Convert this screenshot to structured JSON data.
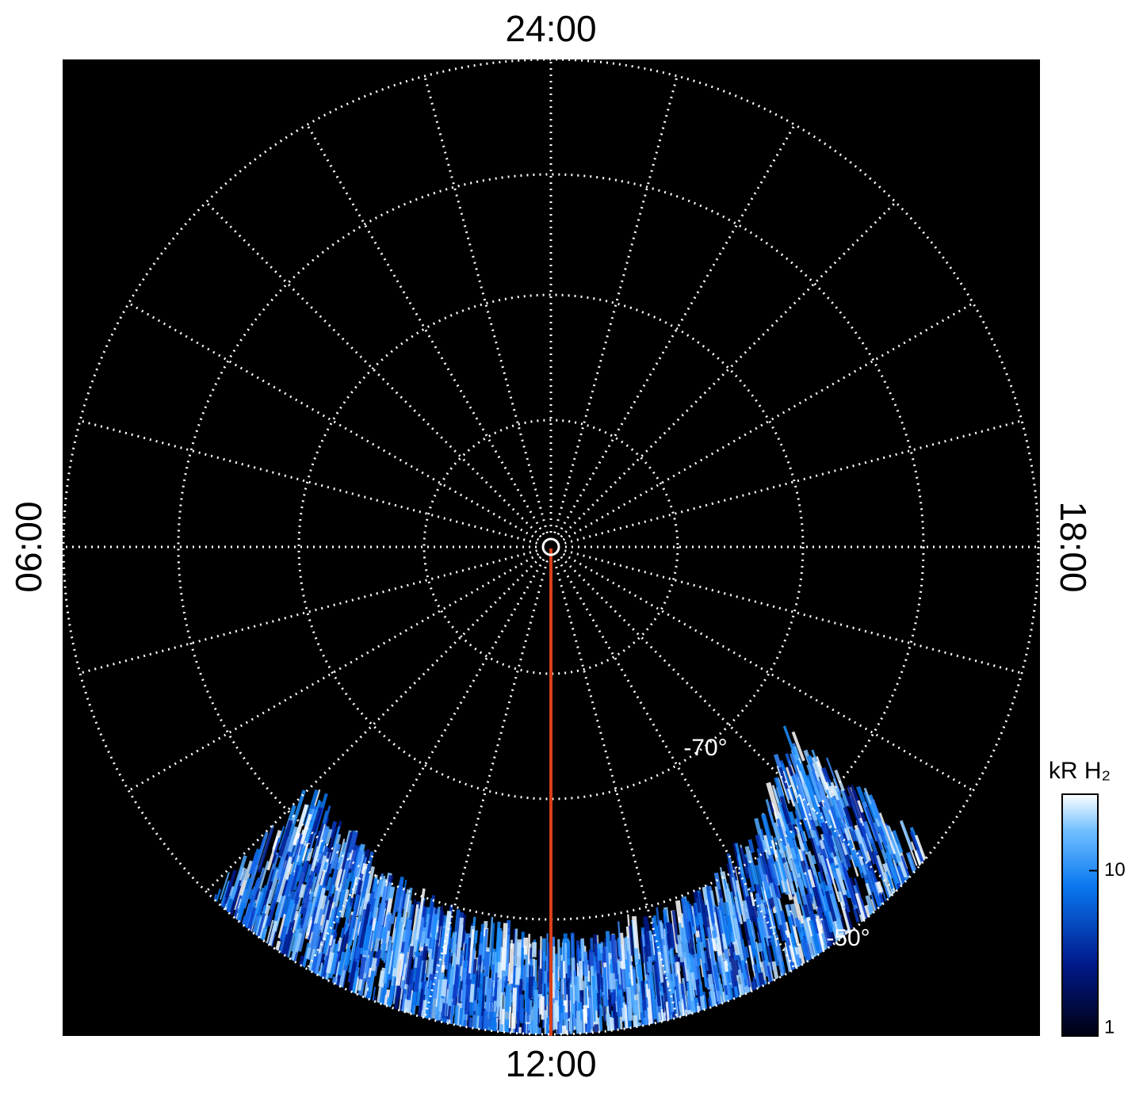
{
  "map": {
    "time_labels": {
      "top": "24:00",
      "left": "06:00",
      "right": "18:00",
      "bottom": "12:00"
    },
    "latitude_labels": [
      "-70°",
      "-50°"
    ],
    "colorbar": {
      "label": "kR H₂",
      "scale": "log",
      "lim": [
        1,
        29
      ],
      "ticks": [
        1,
        10
      ]
    }
  }
}
